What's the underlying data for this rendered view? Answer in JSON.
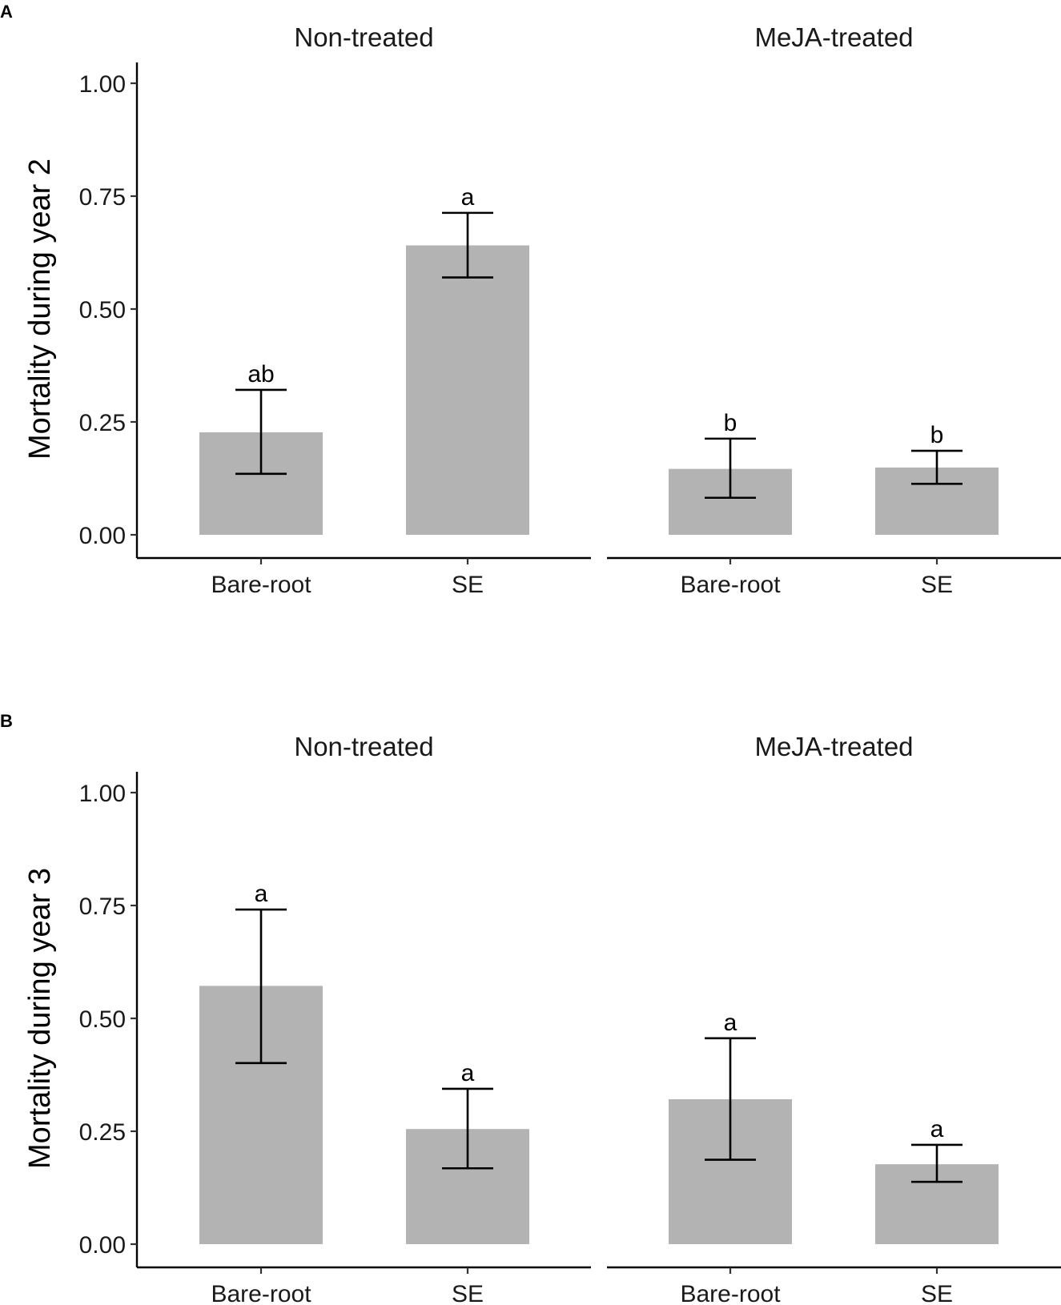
{
  "chart_data": [
    {
      "type": "bar",
      "panel_label": "A",
      "ylabel": "Mortality during year 2",
      "ylim": [
        0,
        1
      ],
      "yticks": [
        "0.00",
        "0.25",
        "0.50",
        "0.75",
        "1.00"
      ],
      "ytick_values": [
        0,
        0.25,
        0.5,
        0.75,
        1.0
      ],
      "facets": [
        {
          "title": "Non-treated",
          "categories": [
            "Bare-root",
            "SE"
          ],
          "values": [
            0.227,
            0.641
          ],
          "err_low": [
            0.135,
            0.57
          ],
          "err_high": [
            0.321,
            0.713
          ],
          "labels": [
            "ab",
            "a"
          ]
        },
        {
          "title": "MeJA-treated",
          "categories": [
            "Bare-root",
            "SE"
          ],
          "values": [
            0.146,
            0.149
          ],
          "err_low": [
            0.082,
            0.113
          ],
          "err_high": [
            0.213,
            0.186
          ],
          "labels": [
            "b",
            "b"
          ]
        }
      ]
    },
    {
      "type": "bar",
      "panel_label": "B",
      "ylabel": "Mortality during year 3",
      "ylim": [
        0,
        1
      ],
      "yticks": [
        "0.00",
        "0.25",
        "0.50",
        "0.75",
        "1.00"
      ],
      "ytick_values": [
        0,
        0.25,
        0.5,
        0.75,
        1.0
      ],
      "facets": [
        {
          "title": "Non-treated",
          "categories": [
            "Bare-root",
            "SE"
          ],
          "values": [
            0.572,
            0.255
          ],
          "err_low": [
            0.401,
            0.168
          ],
          "err_high": [
            0.741,
            0.344
          ],
          "labels": [
            "a",
            "a"
          ]
        },
        {
          "title": "MeJA-treated",
          "categories": [
            "Bare-root",
            "SE"
          ],
          "values": [
            0.321,
            0.177
          ],
          "err_low": [
            0.187,
            0.138
          ],
          "err_high": [
            0.456,
            0.22
          ],
          "labels": [
            "a",
            "a"
          ]
        }
      ]
    }
  ]
}
